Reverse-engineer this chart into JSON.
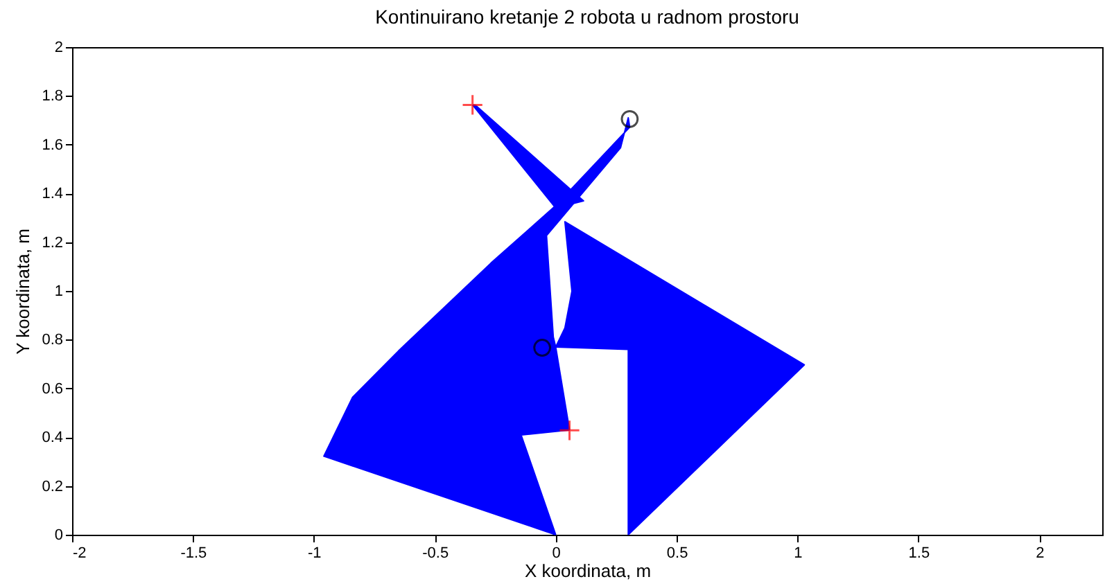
{
  "chart_data": {
    "type": "area",
    "title": "Kontinuirano kretanje 2 robota u radnom prostoru",
    "xlabel": "X koordinata, m",
    "ylabel": "Y koordinata, m",
    "xlim": [
      -2,
      2.26
    ],
    "ylim": [
      0,
      2
    ],
    "xticks": [
      -2,
      -1.5,
      -1,
      -0.5,
      0,
      0.5,
      1,
      1.5,
      2
    ],
    "yticks": [
      0,
      0.2,
      0.4,
      0.6,
      0.8,
      1,
      1.2,
      1.4,
      1.6,
      1.8,
      2
    ],
    "grid": false,
    "series": [
      {
        "color": "#0000ff",
        "x": [
          0,
          -0.959,
          -0.84,
          -0.65,
          -0.268,
          0,
          0.306,
          0.3,
          0.268,
          -0.038,
          -0.01,
          0,
          0.057,
          -0.143,
          0
        ],
        "values": [
          0,
          0.322,
          0.564,
          0.754,
          1.114,
          1.35,
          1.672,
          1.71,
          1.587,
          1.227,
          0.811,
          0.77,
          0.43,
          0.409,
          0
        ]
      },
      {
        "color": "#0000ff",
        "x": [
          0.3,
          1.028,
          0.038,
          0.067,
          0.038,
          0,
          0.3,
          0.3
        ],
        "values": [
          0,
          0.697,
          1.284,
          0.999,
          0.848,
          0.77,
          0.76,
          0
        ]
      },
      {
        "color": "#0000ff",
        "x": [
          -0.344,
          -0.33,
          0.115,
          0,
          -0.344
        ],
        "values": [
          1.763,
          1.76,
          1.369,
          1.34,
          1.763
        ]
      },
      {
        "type": "scatter",
        "color": "#ff0000",
        "marker": "cross",
        "x": [
          -0.344,
          0.057
        ],
        "values": [
          1.763,
          0.428
        ]
      },
      {
        "type": "scatter",
        "color": "#000000",
        "marker": "circle",
        "x": [
          0.306,
          -0.056
        ],
        "values": [
          1.705,
          0.767
        ]
      }
    ]
  }
}
